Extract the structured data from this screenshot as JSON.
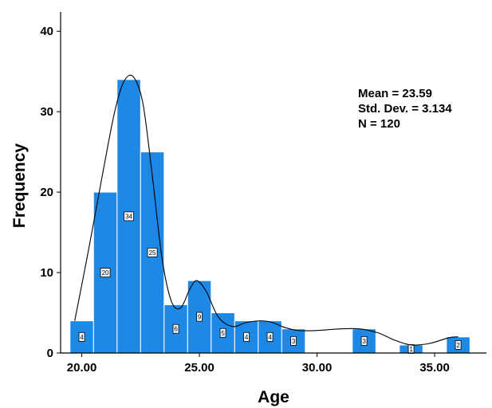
{
  "chart_data": {
    "type": "bar",
    "subtype": "histogram",
    "xlabel": "Age",
    "ylabel": "Frequency",
    "bin_width": 1,
    "bins": [
      {
        "start": 19.5,
        "value": 4
      },
      {
        "start": 20.5,
        "value": 20
      },
      {
        "start": 21.5,
        "value": 34
      },
      {
        "start": 22.5,
        "value": 25
      },
      {
        "start": 23.5,
        "value": 6
      },
      {
        "start": 24.5,
        "value": 9
      },
      {
        "start": 25.5,
        "value": 5
      },
      {
        "start": 26.5,
        "value": 4
      },
      {
        "start": 27.5,
        "value": 4
      },
      {
        "start": 28.5,
        "value": 3
      },
      {
        "start": 31.5,
        "value": 3
      },
      {
        "start": 33.5,
        "value": 1
      },
      {
        "start": 35.5,
        "value": 2
      }
    ],
    "value_labels": [
      "4",
      "20",
      "34",
      "25",
      "6",
      "9",
      "5",
      "4",
      "4",
      "3",
      "3",
      "1",
      "2"
    ],
    "x_ticks": [
      {
        "value": 20,
        "label": "20.00"
      },
      {
        "value": 25,
        "label": "25.00"
      },
      {
        "value": 30,
        "label": "30.00"
      },
      {
        "value": 35,
        "label": "35.00"
      }
    ],
    "y_ticks": [
      {
        "value": 0,
        "label": "0"
      },
      {
        "value": 10,
        "label": "10"
      },
      {
        "value": 20,
        "label": "20"
      },
      {
        "value": 30,
        "label": "30"
      },
      {
        "value": 40,
        "label": "40"
      }
    ],
    "xlim": [
      19.1,
      37.2
    ],
    "ylim": [
      0,
      42.4
    ],
    "stats": {
      "mean": "Mean = 23.59",
      "std": "Std. Dev. = 3.134",
      "n": "N = 120"
    },
    "bar_color": "#1e88e5",
    "curve_color": "#000000",
    "density_curve": [
      [
        19.7,
        4.0
      ],
      [
        20.3,
        13.0
      ],
      [
        20.9,
        22.5
      ],
      [
        21.4,
        30.0
      ],
      [
        21.8,
        33.8
      ],
      [
        22.2,
        34.3
      ],
      [
        22.6,
        31.0
      ],
      [
        23.0,
        22.0
      ],
      [
        23.4,
        12.0
      ],
      [
        23.8,
        6.5
      ],
      [
        24.2,
        5.6
      ],
      [
        24.6,
        8.0
      ],
      [
        24.9,
        9.0
      ],
      [
        25.3,
        7.6
      ],
      [
        25.8,
        4.5
      ],
      [
        26.4,
        3.3
      ],
      [
        27.0,
        3.8
      ],
      [
        27.6,
        4.0
      ],
      [
        28.1,
        3.8
      ],
      [
        28.6,
        3.2
      ],
      [
        29.2,
        2.8
      ],
      [
        30.0,
        2.8
      ],
      [
        31.0,
        3.0
      ],
      [
        31.8,
        3.0
      ],
      [
        32.6,
        2.5
      ],
      [
        33.3,
        1.6
      ],
      [
        34.0,
        1.0
      ],
      [
        34.8,
        1.2
      ],
      [
        35.6,
        1.9
      ],
      [
        36.0,
        2.0
      ]
    ]
  }
}
